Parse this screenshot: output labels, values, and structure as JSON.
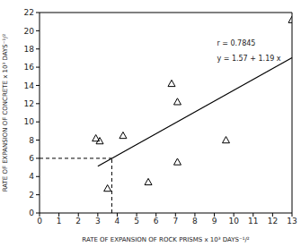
{
  "chart_data": {
    "type": "scatter",
    "x_label": "RATE OF EXPANSION OF ROCK PRISMS x 10³ DAYS⁻¹/²",
    "y_label": "RATE OF EXPANSION OF CONCRETE x 10³ DAYS⁻¹/²",
    "x": [
      2.9,
      3.1,
      3.5,
      4.3,
      5.6,
      6.8,
      7.1,
      7.1,
      9.6,
      13.0
    ],
    "values": [
      8.2,
      7.9,
      2.7,
      8.5,
      3.4,
      14.2,
      12.2,
      5.6,
      8.0,
      21.2
    ],
    "marker": "triangle",
    "color": "#000000",
    "xlim": [
      0,
      13
    ],
    "ylim": [
      0,
      22
    ],
    "xticks": [
      0,
      1,
      2,
      3,
      4,
      5,
      6,
      7,
      8,
      9,
      10,
      11,
      12,
      13
    ],
    "yticks": [
      0,
      2,
      4,
      6,
      8,
      10,
      12,
      14,
      16,
      18,
      20,
      22
    ],
    "grid": false,
    "annotations": [
      "r = 0.7845",
      "y = 1.57 + 1.19 x"
    ],
    "fit_line": {
      "x": [
        3.0,
        13.0
      ],
      "y": [
        5.14,
        17.04
      ]
    },
    "guide_lines": {
      "x": 3.72,
      "y": 6,
      "line_style": "dashed"
    }
  }
}
